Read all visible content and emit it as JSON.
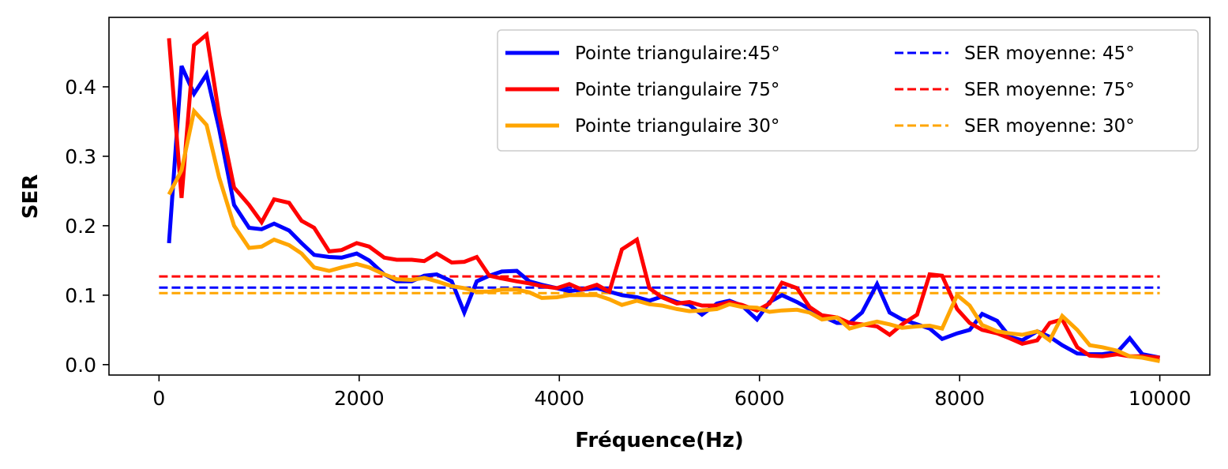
{
  "chart_data": {
    "type": "line",
    "xlabel": "Fréquence(Hz)",
    "ylabel": "SER",
    "xlim": [
      -500,
      10500
    ],
    "ylim": [
      -0.015,
      0.5
    ],
    "x_ticks": [
      0,
      2000,
      4000,
      6000,
      8000,
      10000
    ],
    "x_tick_labels": [
      "0",
      "2000",
      "4000",
      "6000",
      "8000",
      "10000"
    ],
    "y_ticks": [
      0.0,
      0.1,
      0.2,
      0.3,
      0.4
    ],
    "y_tick_labels": [
      "0.0",
      "0.1",
      "0.2",
      "0.3",
      "0.4"
    ],
    "grid": false,
    "legend_position": "top-right",
    "x": [
      100,
      225,
      350,
      475,
      600,
      750,
      900,
      1025,
      1150,
      1300,
      1425,
      1550,
      1700,
      1825,
      1975,
      2100,
      2250,
      2375,
      2525,
      2650,
      2775,
      2925,
      3050,
      3175,
      3300,
      3425,
      3575,
      3700,
      3825,
      3975,
      4100,
      4225,
      4375,
      4500,
      4625,
      4775,
      4900,
      5025,
      5175,
      5300,
      5425,
      5575,
      5700,
      5825,
      5975,
      6100,
      6225,
      6375,
      6500,
      6625,
      6775,
      6900,
      7025,
      7175,
      7300,
      7425,
      7575,
      7700,
      7825,
      7975,
      8100,
      8225,
      8375,
      8500,
      8625,
      8775,
      8900,
      9025,
      9175,
      9300,
      9425,
      9575,
      9700,
      9825,
      10000
    ],
    "series": [
      {
        "name": "Pointe triangulaire:45°",
        "color": "#0000ff",
        "style": "solid",
        "values": [
          0.175,
          0.43,
          0.39,
          0.418,
          0.34,
          0.23,
          0.197,
          0.195,
          0.203,
          0.193,
          0.175,
          0.158,
          0.155,
          0.154,
          0.16,
          0.15,
          0.13,
          0.12,
          0.12,
          0.128,
          0.13,
          0.12,
          0.075,
          0.12,
          0.128,
          0.134,
          0.135,
          0.12,
          0.115,
          0.11,
          0.106,
          0.108,
          0.11,
          0.105,
          0.1,
          0.097,
          0.092,
          0.098,
          0.09,
          0.086,
          0.072,
          0.088,
          0.092,
          0.085,
          0.065,
          0.09,
          0.1,
          0.09,
          0.08,
          0.07,
          0.06,
          0.06,
          0.075,
          0.116,
          0.075,
          0.065,
          0.058,
          0.052,
          0.037,
          0.045,
          0.05,
          0.073,
          0.063,
          0.04,
          0.035,
          0.048,
          0.04,
          0.028,
          0.016,
          0.015,
          0.015,
          0.018,
          0.038,
          0.015,
          0.01
        ]
      },
      {
        "name": "Pointe triangulaire 75°",
        "color": "#ff0000",
        "style": "solid",
        "values": [
          0.47,
          0.24,
          0.46,
          0.475,
          0.36,
          0.255,
          0.23,
          0.205,
          0.238,
          0.233,
          0.207,
          0.197,
          0.163,
          0.165,
          0.175,
          0.17,
          0.154,
          0.151,
          0.151,
          0.149,
          0.16,
          0.147,
          0.148,
          0.155,
          0.128,
          0.124,
          0.12,
          0.117,
          0.113,
          0.11,
          0.116,
          0.108,
          0.115,
          0.105,
          0.166,
          0.18,
          0.11,
          0.097,
          0.088,
          0.09,
          0.085,
          0.085,
          0.09,
          0.086,
          0.078,
          0.088,
          0.118,
          0.11,
          0.083,
          0.071,
          0.068,
          0.06,
          0.058,
          0.055,
          0.043,
          0.058,
          0.072,
          0.13,
          0.128,
          0.08,
          0.06,
          0.05,
          0.045,
          0.038,
          0.03,
          0.035,
          0.06,
          0.065,
          0.025,
          0.013,
          0.012,
          0.015,
          0.012,
          0.012,
          0.01
        ]
      },
      {
        "name": "Pointe triangulaire 30°",
        "color": "#ffa500",
        "style": "solid",
        "values": [
          0.245,
          0.28,
          0.365,
          0.345,
          0.27,
          0.2,
          0.168,
          0.17,
          0.18,
          0.172,
          0.16,
          0.14,
          0.135,
          0.14,
          0.145,
          0.14,
          0.13,
          0.123,
          0.122,
          0.125,
          0.12,
          0.113,
          0.11,
          0.105,
          0.105,
          0.108,
          0.108,
          0.104,
          0.096,
          0.097,
          0.1,
          0.1,
          0.1,
          0.094,
          0.086,
          0.092,
          0.087,
          0.085,
          0.08,
          0.077,
          0.078,
          0.08,
          0.087,
          0.083,
          0.082,
          0.076,
          0.078,
          0.079,
          0.075,
          0.065,
          0.068,
          0.052,
          0.057,
          0.062,
          0.058,
          0.053,
          0.055,
          0.056,
          0.052,
          0.1,
          0.085,
          0.057,
          0.048,
          0.045,
          0.043,
          0.048,
          0.035,
          0.07,
          0.05,
          0.028,
          0.025,
          0.02,
          0.012,
          0.01,
          0.005
        ]
      },
      {
        "name": "SER moyenne: 45°",
        "color": "#0000ff",
        "style": "dashed",
        "x": [
          0,
          10000
        ],
        "values": [
          0.111,
          0.111
        ]
      },
      {
        "name": "SER moyenne: 75°",
        "color": "#ff0000",
        "style": "dashed",
        "x": [
          0,
          10000
        ],
        "values": [
          0.127,
          0.127
        ]
      },
      {
        "name": "SER moyenne: 30°",
        "color": "#ffa500",
        "style": "dashed",
        "x": [
          0,
          10000
        ],
        "values": [
          0.103,
          0.103
        ]
      }
    ]
  }
}
